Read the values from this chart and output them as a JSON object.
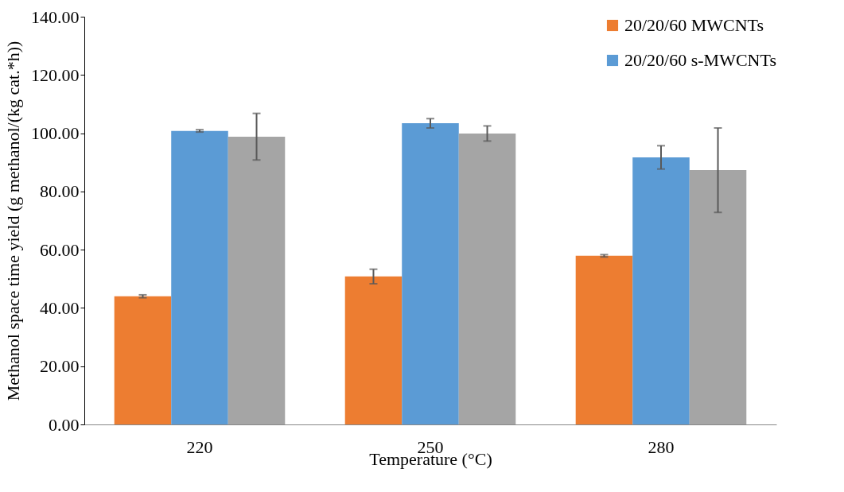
{
  "chart_data": {
    "type": "bar",
    "xlabel": "Temperature (°C)",
    "ylabel": "Methanol space time yield (g methanol/(kg cat.*h))",
    "categories": [
      "220",
      "250",
      "280"
    ],
    "series": [
      {
        "name": "20/20/60 MWCNTs",
        "color": "#ed7d31",
        "values": [
          44.0,
          50.8,
          57.9
        ],
        "errors": [
          0.5,
          2.5,
          0.4
        ]
      },
      {
        "name": "20/20/60 s-MWCNTs",
        "color": "#5b9bd5",
        "values": [
          100.8,
          103.4,
          91.7
        ],
        "errors": [
          0.4,
          1.6,
          4.0
        ]
      },
      {
        "color": "#a5a5a5",
        "values": [
          98.8,
          99.9,
          87.3
        ],
        "errors": [
          8.0,
          2.6,
          14.5
        ]
      }
    ],
    "ylim": [
      0,
      140
    ],
    "yticks": [
      {
        "value": 0,
        "label": "0.00"
      },
      {
        "value": 20,
        "label": "20.00"
      },
      {
        "value": 40,
        "label": "40.00"
      },
      {
        "value": 60,
        "label": "60.00"
      },
      {
        "value": 80,
        "label": "80.00"
      },
      {
        "value": 100,
        "label": "100.00"
      },
      {
        "value": 120,
        "label": "120.00"
      },
      {
        "value": 140,
        "label": "140.00"
      }
    ],
    "legend": "top right"
  }
}
